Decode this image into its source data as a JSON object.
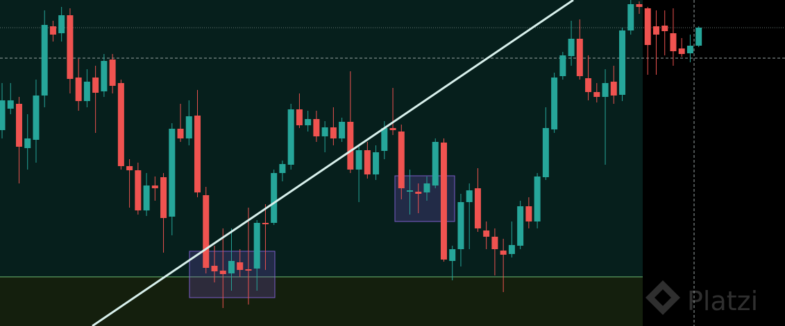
{
  "chart_data": {
    "type": "candlestick",
    "open": [
      283,
      314,
      321,
      257,
      269,
      333,
      433,
      423,
      449,
      359,
      325,
      359,
      339,
      385,
      351,
      231,
      225,
      167,
      203,
      215,
      158,
      285,
      271,
      304,
      189,
      87,
      80,
      76,
      92,
      82,
      83,
      149,
      149,
      221,
      233,
      313,
      290,
      299,
      274,
      287,
      271,
      295,
      226,
      254,
      219,
      253,
      286,
      281,
      194,
      194,
      193,
      203,
      265,
      94,
      111,
      179,
      199,
      138,
      129,
      109,
      104,
      116,
      173,
      151,
      215,
      284,
      361,
      390,
      415,
      358,
      338,
      331,
      353,
      334,
      427,
      465,
      459,
      433,
      434,
      423,
      401,
      394,
      405
    ],
    "high": [
      351,
      351,
      331,
      306,
      356,
      456,
      441,
      461,
      459,
      386,
      371,
      376,
      393,
      393,
      356,
      241,
      236,
      221,
      216,
      221,
      293,
      321,
      326,
      341,
      201,
      116,
      141,
      141,
      111,
      171,
      153,
      176,
      226,
      239,
      321,
      336,
      311,
      311,
      296,
      316,
      301,
      368,
      261,
      266,
      261,
      296,
      344,
      291,
      226,
      206,
      216,
      271,
      271,
      116,
      191,
      206,
      228,
      151,
      141,
      126,
      151,
      181,
      186,
      221,
      316,
      366,
      396,
      441,
      443,
      391,
      351,
      371,
      376,
      431,
      471,
      469,
      461,
      456,
      456,
      459,
      416,
      421,
      433
    ],
    "low": [
      271,
      306,
      206,
      226,
      236,
      316,
      411,
      411,
      336,
      311,
      316,
      279,
      331,
      336,
      226,
      171,
      161,
      159,
      181,
      106,
      131,
      266,
      261,
      186,
      76,
      63,
      26,
      51,
      71,
      31,
      51,
      81,
      146,
      209,
      226,
      286,
      281,
      266,
      251,
      261,
      266,
      221,
      179,
      213,
      211,
      241,
      276,
      183,
      161,
      163,
      181,
      199,
      93,
      66,
      86,
      111,
      136,
      111,
      73,
      49,
      99,
      111,
      141,
      141,
      211,
      279,
      356,
      376,
      356,
      326,
      323,
      233,
      321,
      325,
      421,
      451,
      363,
      363,
      391,
      376,
      389,
      381,
      403
    ],
    "close": [
      326,
      326,
      259,
      271,
      333,
      435,
      421,
      449,
      357,
      325,
      353,
      337,
      383,
      347,
      231,
      225,
      167,
      203,
      199,
      156,
      285,
      271,
      303,
      193,
      84,
      79,
      75,
      94,
      81,
      80,
      149,
      147,
      221,
      234,
      313,
      290,
      299,
      274,
      287,
      271,
      295,
      226,
      254,
      219,
      251,
      286,
      283,
      199,
      196,
      191,
      206,
      266,
      96,
      111,
      179,
      196,
      141,
      129,
      111,
      103,
      117,
      173,
      151,
      216,
      286,
      359,
      391,
      415,
      361,
      338,
      331,
      351,
      333,
      427,
      465,
      461,
      406,
      421,
      426,
      397,
      393,
      405,
      431
    ],
    "up_color": "#26a69a",
    "down_color": "#ef5350",
    "ylim": [
      0,
      471
    ]
  },
  "watermark": "Platzi"
}
